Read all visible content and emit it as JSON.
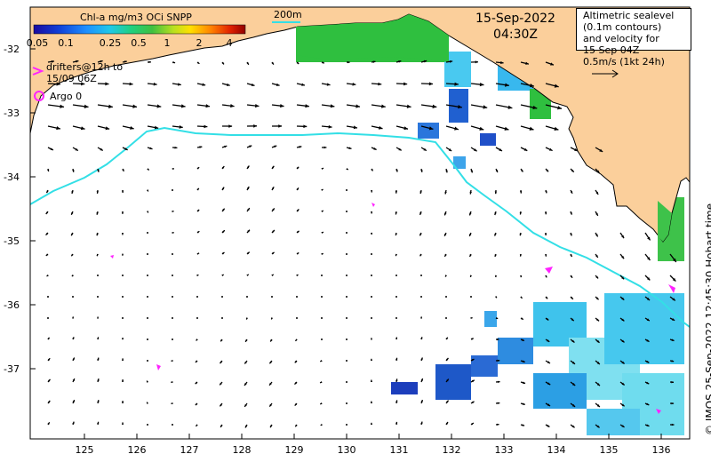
{
  "colorbar": {
    "title": "Chl-a mg/m3 OCi SNPP",
    "ticks": [
      "0.05",
      "0.1",
      "0.25",
      "0.5",
      "1",
      "2",
      "4"
    ]
  },
  "date": {
    "day": "15-Sep-2022",
    "time": "04:30Z"
  },
  "isobath_label": "200m",
  "info_box": {
    "lines": [
      "Altimetric sealevel",
      "(0.1m contours)",
      "and velocity for",
      "15 Sep 04Z",
      "0.5m/s (1kt 24h)"
    ]
  },
  "legend": {
    "drifters_line1": "drifters@12h to",
    "drifters_line2": "15/09 06Z",
    "argo": "Argo 0"
  },
  "axes": {
    "lon_ticks": [
      "125",
      "126",
      "127",
      "128",
      "129",
      "130",
      "131",
      "132",
      "133",
      "134",
      "135",
      "136"
    ],
    "lat_ticks": [
      "-32",
      "-33",
      "-34",
      "-35",
      "-36",
      "-37"
    ]
  },
  "credit": "© IMOS 25-Sep-2022 12:45:30 Hobart time",
  "colors": {
    "land": "#fbcf9b",
    "isobath": "#33dfe6",
    "drifter": "#ff22ff",
    "arrow": "#000000"
  }
}
